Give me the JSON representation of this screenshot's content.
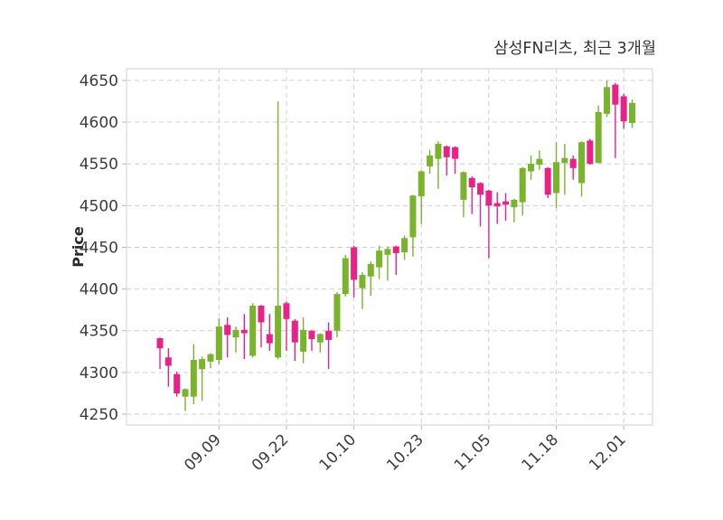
{
  "title": "삼성FN리츠, 최근 3개월",
  "chart_data": {
    "type": "candlestick",
    "title": "삼성FN리츠, 최근 3개월",
    "ylabel": "Price",
    "xlabel": "",
    "legend": "none",
    "grid": "dashed-both-axes",
    "ylim": [
      4237,
      4664
    ],
    "y_ticks": [
      4250,
      4300,
      4350,
      4400,
      4450,
      4500,
      4550,
      4600,
      4650
    ],
    "x_tick_labels": [
      "09.09",
      "09.22",
      "10.10",
      "10.23",
      "11.05",
      "11.18",
      "12.01"
    ],
    "x_tick_indices": [
      7,
      15,
      23,
      31,
      39,
      47,
      55
    ],
    "colors": {
      "up": "#7ab32c",
      "down": "#e82287",
      "grid": "#ced1d6",
      "spine": "#d8d8d8",
      "tick": "#b5b5b5",
      "label": "#3d3d3d",
      "title": "#2e3540"
    },
    "ohlc": [
      [
        4341,
        4342,
        4304,
        4329
      ],
      [
        4318,
        4329,
        4283,
        4308
      ],
      [
        4298,
        4301,
        4271,
        4275
      ],
      [
        4271,
        4281,
        4254,
        4280
      ],
      [
        4271,
        4334,
        4262,
        4315
      ],
      [
        4304,
        4319,
        4266,
        4316
      ],
      [
        4313,
        4323,
        4305,
        4322
      ],
      [
        4315,
        4365,
        4310,
        4355
      ],
      [
        4357,
        4366,
        4318,
        4345
      ],
      [
        4342,
        4355,
        4324,
        4351
      ],
      [
        4351,
        4370,
        4316,
        4347
      ],
      [
        4320,
        4383,
        4318,
        4380
      ],
      [
        4380,
        4381,
        4330,
        4360
      ],
      [
        4346,
        4370,
        4326,
        4335
      ],
      [
        4318,
        4625,
        4316,
        4380
      ],
      [
        4383,
        4385,
        4326,
        4364
      ],
      [
        4362,
        4364,
        4314,
        4336
      ],
      [
        4325,
        4366,
        4311,
        4351
      ],
      [
        4350,
        4351,
        4326,
        4340
      ],
      [
        4336,
        4347,
        4324,
        4346
      ],
      [
        4350,
        4360,
        4304,
        4339
      ],
      [
        4350,
        4396,
        4342,
        4394
      ],
      [
        4394,
        4441,
        4391,
        4437
      ],
      [
        4450,
        4452,
        4390,
        4411
      ],
      [
        4401,
        4420,
        4376,
        4417
      ],
      [
        4415,
        4433,
        4392,
        4430
      ],
      [
        4426,
        4452,
        4412,
        4446
      ],
      [
        4441,
        4451,
        4410,
        4448
      ],
      [
        4451,
        4452,
        4417,
        4443
      ],
      [
        4444,
        4464,
        4435,
        4461
      ],
      [
        4462,
        4513,
        4439,
        4512
      ],
      [
        4511,
        4542,
        4478,
        4541
      ],
      [
        4547,
        4567,
        4538,
        4560
      ],
      [
        4556,
        4577,
        4520,
        4574
      ],
      [
        4571,
        4572,
        4536,
        4558
      ],
      [
        4570,
        4571,
        4538,
        4556
      ],
      [
        4507,
        4541,
        4486,
        4540
      ],
      [
        4533,
        4535,
        4490,
        4522
      ],
      [
        4527,
        4528,
        4475,
        4513
      ],
      [
        4518,
        4519,
        4437,
        4500
      ],
      [
        4503,
        4516,
        4478,
        4499
      ],
      [
        4505,
        4515,
        4482,
        4501
      ],
      [
        4498,
        4508,
        4480,
        4507
      ],
      [
        4504,
        4546,
        4488,
        4545
      ],
      [
        4541,
        4560,
        4531,
        4550
      ],
      [
        4549,
        4566,
        4543,
        4556
      ],
      [
        4545,
        4546,
        4509,
        4513
      ],
      [
        4515,
        4576,
        4497,
        4552
      ],
      [
        4551,
        4574,
        4513,
        4557
      ],
      [
        4556,
        4560,
        4531,
        4545
      ],
      [
        4527,
        4577,
        4511,
        4576
      ],
      [
        4578,
        4580,
        4549,
        4550
      ],
      [
        4551,
        4620,
        4551,
        4612
      ],
      [
        4610,
        4650,
        4606,
        4642
      ],
      [
        4645,
        4647,
        4557,
        4621
      ],
      [
        4631,
        4634,
        4592,
        4601
      ],
      [
        4599,
        4627,
        4593,
        4623
      ]
    ]
  }
}
